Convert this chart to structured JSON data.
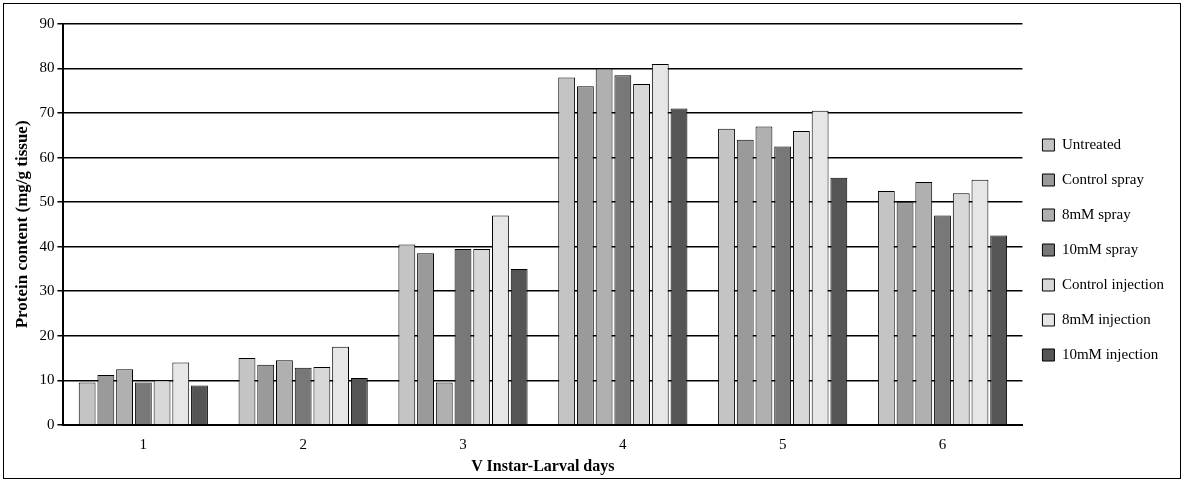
{
  "chart_data": {
    "type": "bar",
    "xlabel": "V Instar-Larval days",
    "ylabel": "Protein content (mg/g tissue)",
    "categories": [
      "1",
      "2",
      "3",
      "4",
      "5",
      "6"
    ],
    "ylim": [
      0,
      90
    ],
    "yticks": [
      0,
      10,
      20,
      30,
      40,
      50,
      60,
      70,
      80,
      90
    ],
    "grid": "y",
    "legend": "right",
    "series": [
      {
        "name": "Untreated",
        "color": "#c4c4c4",
        "values": [
          9.5,
          15,
          40.5,
          78,
          66.5,
          52.5
        ]
      },
      {
        "name": "Control spray",
        "color": "#9a9a9a",
        "values": [
          11.2,
          13.5,
          38.5,
          76,
          64,
          50
        ]
      },
      {
        "name": "8mM spray",
        "color": "#b0b0b0",
        "values": [
          12.5,
          14.5,
          9.5,
          80,
          67,
          54.5
        ]
      },
      {
        "name": "10mM spray",
        "color": "#787878",
        "values": [
          9.5,
          12.8,
          39.5,
          78.5,
          62.5,
          47
        ]
      },
      {
        "name": "Control injection",
        "color": "#d8d8d8",
        "values": [
          10,
          13,
          39.5,
          76.5,
          66,
          52
        ]
      },
      {
        "name": "8mM injection",
        "color": "#e6e6e6",
        "values": [
          14,
          17.5,
          47,
          81,
          70.5,
          55
        ]
      },
      {
        "name": "10mM injection",
        "color": "#555555",
        "values": [
          8.8,
          10.5,
          35,
          71,
          55.5,
          42.5
        ]
      }
    ]
  }
}
